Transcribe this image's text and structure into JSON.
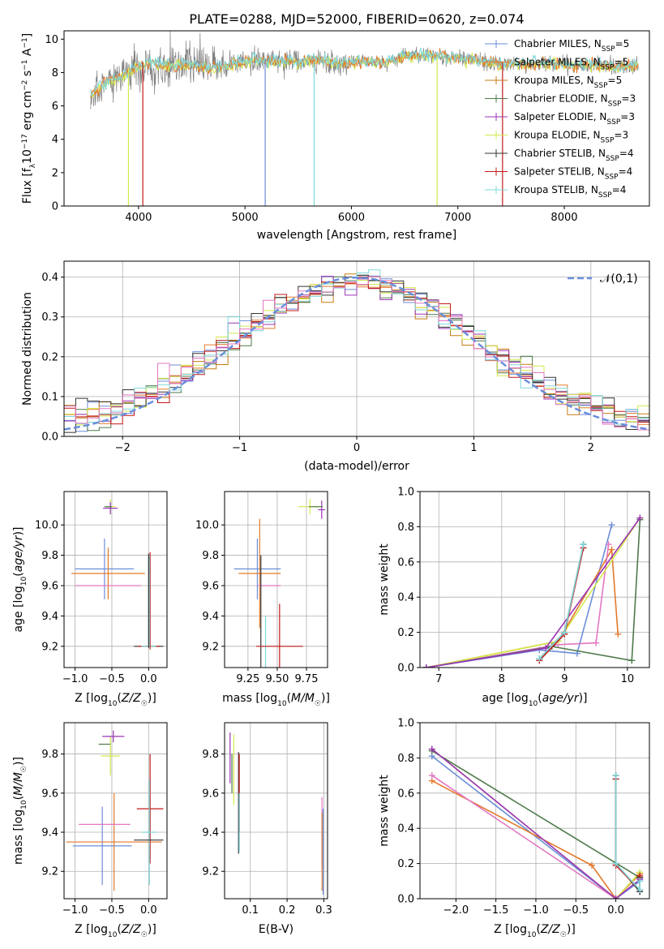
{
  "title": "PLATE=0288, MJD=52000, FIBERID=0620, z=0.074",
  "colors": {
    "chabrier_miles": "#6c8ed8",
    "salpeter_miles": "#e37a2b",
    "kroupa_miles": "#c97a14",
    "chabrier_elodie": "#4e7a4a",
    "salpeter_elodie": "#9b34b6",
    "kroupa_elodie": "#d4e84a",
    "chabrier_stelib": "#333333",
    "salpeter_stelib": "#c21a1a",
    "kroupa_stelib": "#7fd8da",
    "gaussian": "#6a8fdc",
    "pink": "#e377c2"
  },
  "chart_data": [
    {
      "id": "spectrum",
      "type": "line",
      "xlabel": "wavelength [Angstrom, rest frame]",
      "ylabel": "Flux [f_λ 10^-17 erg cm^-2 s^-1 A^-1]",
      "xlim": [
        3300,
        8800
      ],
      "ylim": [
        0,
        10.5
      ],
      "xticks": [
        "4000",
        "5000",
        "6000",
        "7000",
        "8000"
      ],
      "yticks": [
        "0",
        "2",
        "4",
        "6",
        "8",
        "10"
      ],
      "grid": false,
      "legend_position": "upper-right",
      "legend": [
        {
          "label": "Chabrier MILES, N",
          "sub": "SSP",
          "tail": "=5"
        },
        {
          "label": "Salpeter MILES, N",
          "sub": "SSP",
          "tail": "=5"
        },
        {
          "label": "Kroupa MILES, N",
          "sub": "SSP",
          "tail": "=5"
        },
        {
          "label": "Chabrier ELODIE, N",
          "sub": "SSP",
          "tail": "=3"
        },
        {
          "label": "Salpeter ELODIE, N",
          "sub": "SSP",
          "tail": "=3"
        },
        {
          "label": "Kroupa ELODIE, N",
          "sub": "SSP",
          "tail": "=3"
        },
        {
          "label": "Chabrier STELIB, N",
          "sub": "SSP",
          "tail": "=4"
        },
        {
          "label": "Salpeter STELIB, N",
          "sub": "SSP",
          "tail": "=4"
        },
        {
          "label": "Kroupa STELIB, N",
          "sub": "SSP",
          "tail": "=4"
        }
      ],
      "continuum": [
        [
          3550,
          6.6
        ],
        [
          3650,
          7.2
        ],
        [
          3750,
          7.6
        ],
        [
          3850,
          7.8
        ],
        [
          3950,
          8.2
        ],
        [
          4100,
          8.6
        ],
        [
          4300,
          8.4
        ],
        [
          4500,
          8.5
        ],
        [
          4700,
          8.3
        ],
        [
          4900,
          8.5
        ],
        [
          5100,
          8.8
        ],
        [
          5300,
          8.7
        ],
        [
          5500,
          8.6
        ],
        [
          5700,
          8.8
        ],
        [
          5900,
          8.5
        ],
        [
          6100,
          8.7
        ],
        [
          6300,
          8.6
        ],
        [
          6500,
          9.0
        ],
        [
          6700,
          9.1
        ],
        [
          6900,
          8.9
        ],
        [
          7100,
          8.8
        ],
        [
          7300,
          8.6
        ],
        [
          7500,
          8.5
        ],
        [
          7700,
          8.5
        ],
        [
          7900,
          8.6
        ],
        [
          8100,
          8.4
        ],
        [
          8300,
          8.5
        ],
        [
          8500,
          8.3
        ],
        [
          8700,
          8.4
        ]
      ],
      "absorption_lines": [
        {
          "x": 3905,
          "depth": 8.3,
          "color": "kroupa_elodie"
        },
        {
          "x": 4040,
          "depth": 8.6,
          "color": "salpeter_stelib"
        },
        {
          "x": 5190,
          "depth": 8.8,
          "color": "chabrier_miles"
        },
        {
          "x": 5650,
          "depth": 8.7,
          "color": "kroupa_stelib"
        },
        {
          "x": 6805,
          "depth": 8.9,
          "color": "kroupa_elodie"
        },
        {
          "x": 7420,
          "depth": 8.6,
          "color": "salpeter_stelib"
        }
      ]
    },
    {
      "id": "residuals",
      "type": "line",
      "xlabel": "(data-model)/error",
      "ylabel": "Normed distribution",
      "xlim": [
        -2.5,
        2.5
      ],
      "ylim": [
        0,
        0.44
      ],
      "xticks": [
        "-2",
        "-1",
        "0",
        "1",
        "2"
      ],
      "yticks": [
        "0.0",
        "0.1",
        "0.2",
        "0.3",
        "0.4"
      ],
      "grid": true,
      "legend_position": "upper-right",
      "legend_label": "𝒩(0,1)",
      "bin_width": 0.1,
      "bin_start": -2.5,
      "bin_count": 50
    },
    {
      "id": "age_vs_Z",
      "type": "scatter",
      "xlabel": "Z [log10(Z/Z☉)]",
      "ylabel": "age  [log10(age/yr)]",
      "xlim": [
        -1.15,
        0.25
      ],
      "ylim": [
        9.06,
        10.22
      ],
      "xticks": [
        "-1.0",
        "-0.5",
        "0.0"
      ],
      "yticks": [
        "9.2",
        "9.4",
        "9.6",
        "9.8",
        "10.0"
      ],
      "grid": true,
      "errorbars": [
        {
          "c": "chabrier_miles",
          "x": -0.6,
          "y": 9.71,
          "xerr": 0.4,
          "yerr": 0.2
        },
        {
          "c": "salpeter_miles",
          "x": -0.55,
          "y": 9.68,
          "xerr": 0.5,
          "yerr": 0.17
        },
        {
          "c": "pink",
          "x": -0.55,
          "y": 9.6,
          "xerr": 0.45,
          "yerr": 0.0
        },
        {
          "c": "kroupa_elodie",
          "x": -0.52,
          "y": 10.12,
          "xerr": 0.07,
          "yerr": 0.05
        },
        {
          "c": "salpeter_elodie",
          "x": -0.52,
          "y": 10.11,
          "xerr": 0.1,
          "yerr": 0.04
        },
        {
          "c": "chabrier_elodie",
          "x": -0.55,
          "y": 10.12,
          "xerr": 0.05,
          "yerr": 0.0
        },
        {
          "c": "chabrier_stelib",
          "x": 0.0,
          "y": 9.2,
          "xerr": 0.2,
          "yerr": 0.0
        },
        {
          "c": "salpeter_stelib",
          "x": 0.0,
          "y": 9.2,
          "xerr": 0.15,
          "yerr": 0.0
        },
        {
          "c": "kroupa_stelib",
          "x": 0.0,
          "y": 9.2,
          "xerr": 0.1,
          "yerr": 0.0
        },
        {
          "c": "salpeter_stelib",
          "x": 0.02,
          "y": 9.5,
          "xerr": 0.0,
          "yerr": 0.32
        },
        {
          "c": "kroupa_stelib",
          "x": 0.01,
          "y": 9.5,
          "xerr": 0.0,
          "yerr": 0.3
        },
        {
          "c": "chabrier_stelib",
          "x": 0.0,
          "y": 9.5,
          "xerr": 0.0,
          "yerr": 0.31
        }
      ]
    },
    {
      "id": "age_vs_mass",
      "type": "scatter",
      "xlabel": "mass [log10(M/M☉)]",
      "ylabel": "",
      "xlim": [
        9.05,
        9.93
      ],
      "ylim": [
        9.06,
        10.22
      ],
      "xticks": [
        "9.25",
        "9.50",
        "9.75"
      ],
      "yticks": [
        "9.2",
        "9.4",
        "9.6",
        "9.8",
        "10.0"
      ],
      "grid": true,
      "errorbars": [
        {
          "c": "chabrier_miles",
          "x": 9.33,
          "y": 9.71,
          "xerr": 0.2,
          "yerr": 0.2
        },
        {
          "c": "salpeter_miles",
          "x": 9.35,
          "y": 9.68,
          "xerr": 0.18,
          "yerr": 0.36
        },
        {
          "c": "pink",
          "x": 9.43,
          "y": 9.6,
          "xerr": 0.1,
          "yerr": 0.0
        },
        {
          "c": "kroupa_stelib",
          "x": 9.4,
          "y": 9.2,
          "xerr": 0.0,
          "yerr": 0.2
        },
        {
          "c": "chabrier_stelib",
          "x": 9.36,
          "y": 9.36,
          "xerr": 0.0,
          "yerr": 0.44
        },
        {
          "c": "salpeter_stelib",
          "x": 9.52,
          "y": 9.2,
          "xerr": 0.2,
          "yerr": 0.28
        },
        {
          "c": "kroupa_elodie",
          "x": 9.78,
          "y": 10.12,
          "xerr": 0.1,
          "yerr": 0.05
        },
        {
          "c": "salpeter_elodie",
          "x": 9.88,
          "y": 10.1,
          "xerr": 0.03,
          "yerr": 0.06
        },
        {
          "c": "chabrier_elodie",
          "x": 9.83,
          "y": 10.12,
          "xerr": 0.06,
          "yerr": 0.0
        }
      ]
    },
    {
      "id": "massweight_vs_age",
      "type": "line",
      "xlabel": "age  [log10(age/yr)]",
      "ylabel": "mass weight",
      "xlim": [
        6.7,
        10.35
      ],
      "ylim": [
        0,
        1
      ],
      "xticks": [
        "7",
        "8",
        "9",
        "10"
      ],
      "yticks": [
        "0.0",
        "0.2",
        "0.4",
        "0.6",
        "0.8",
        "1.0"
      ],
      "grid": true,
      "series": [
        {
          "c": "chabrier_miles",
          "x": [
            6.8,
            8.6,
            9.2,
            9.75
          ],
          "y": [
            0.0,
            0.1,
            0.08,
            0.81
          ]
        },
        {
          "c": "salpeter_miles",
          "x": [
            6.8,
            8.9,
            9.75,
            9.85
          ],
          "y": [
            0.0,
            0.15,
            0.67,
            0.19
          ]
        },
        {
          "c": "pink",
          "x": [
            6.8,
            8.9,
            9.5,
            9.7
          ],
          "y": [
            0.0,
            0.13,
            0.14,
            0.7
          ]
        },
        {
          "c": "kroupa_elodie",
          "x": [
            6.8,
            8.9,
            10.2
          ],
          "y": [
            0.0,
            0.15,
            0.85
          ]
        },
        {
          "c": "chabrier_elodie",
          "x": [
            6.8,
            8.8,
            10.07,
            10.2
          ],
          "y": [
            0.0,
            0.12,
            0.04,
            0.84
          ]
        },
        {
          "c": "salpeter_elodie",
          "x": [
            6.8,
            8.7,
            10.2
          ],
          "y": [
            0.0,
            0.11,
            0.85
          ]
        },
        {
          "c": "chabrier_stelib",
          "x": [
            8.6,
            9.0,
            9.3
          ],
          "y": [
            0.05,
            0.2,
            0.7
          ]
        },
        {
          "c": "salpeter_stelib",
          "x": [
            8.6,
            9.0,
            9.3
          ],
          "y": [
            0.04,
            0.19,
            0.68
          ]
        },
        {
          "c": "kroupa_stelib",
          "x": [
            8.6,
            9.0,
            9.3
          ],
          "y": [
            0.05,
            0.2,
            0.7
          ]
        }
      ]
    },
    {
      "id": "mass_vs_Z",
      "type": "scatter",
      "xlabel": "Z [log10(Z/Z☉)]",
      "ylabel": "mass [log10(M/M☉)]",
      "xlim": [
        -1.15,
        0.25
      ],
      "ylim": [
        9.06,
        9.96
      ],
      "xticks": [
        "-1.0",
        "-0.5",
        "0.0"
      ],
      "yticks": [
        "9.2",
        "9.4",
        "9.6",
        "9.8"
      ],
      "grid": true,
      "errorbars": [
        {
          "c": "chabrier_miles",
          "x": -0.63,
          "y": 9.33,
          "xerr": 0.4,
          "yerr": 0.2
        },
        {
          "c": "salpeter_miles",
          "x": -0.47,
          "y": 9.35,
          "xerr": 0.65,
          "yerr": 0.25
        },
        {
          "c": "pink",
          "x": -0.6,
          "y": 9.44,
          "xerr": 0.35,
          "yerr": 0.0
        },
        {
          "c": "kroupa_elodie",
          "x": -0.52,
          "y": 9.79,
          "xerr": 0.13,
          "yerr": 0.1
        },
        {
          "c": "salpeter_elodie",
          "x": -0.48,
          "y": 9.89,
          "xerr": 0.15,
          "yerr": 0.03
        },
        {
          "c": "chabrier_elodie",
          "x": -0.6,
          "y": 9.85,
          "xerr": 0.08,
          "yerr": 0.0
        },
        {
          "c": "salpeter_stelib",
          "x": 0.02,
          "y": 9.52,
          "xerr": 0.18,
          "yerr": 0.28
        },
        {
          "c": "kroupa_stelib",
          "x": 0.01,
          "y": 9.4,
          "xerr": 0.1,
          "yerr": 0.27
        },
        {
          "c": "chabrier_stelib",
          "x": 0.0,
          "y": 9.36,
          "xerr": 0.2,
          "yerr": 0.0
        }
      ]
    },
    {
      "id": "mass_vs_ebv",
      "type": "scatter",
      "xlabel": "E(B-V)",
      "ylabel": "",
      "xlim": [
        0.03,
        0.31
      ],
      "ylim": [
        9.06,
        9.96
      ],
      "xticks": [
        "0.1",
        "0.2",
        "0.3"
      ],
      "yticks": [
        "9.2",
        "9.4",
        "9.6",
        "9.8"
      ],
      "grid": true,
      "errorbars": [
        {
          "c": "salpeter_elodie",
          "x": 0.045,
          "y": 9.78,
          "xerr": 0.0,
          "yerr": 0.13
        },
        {
          "c": "kroupa_elodie",
          "x": 0.055,
          "y": 9.72,
          "xerr": 0.0,
          "yerr": 0.18
        },
        {
          "c": "chabrier_elodie",
          "x": 0.05,
          "y": 9.7,
          "xerr": 0.0,
          "yerr": 0.1
        },
        {
          "c": "chabrier_stelib",
          "x": 0.068,
          "y": 9.55,
          "xerr": 0.0,
          "yerr": 0.26
        },
        {
          "c": "salpeter_stelib",
          "x": 0.07,
          "y": 9.6,
          "xerr": 0.0,
          "yerr": 0.2
        },
        {
          "c": "kroupa_stelib",
          "x": 0.07,
          "y": 9.45,
          "xerr": 0.0,
          "yerr": 0.15
        },
        {
          "c": "pink",
          "x": 0.295,
          "y": 9.4,
          "xerr": 0.0,
          "yerr": 0.18
        },
        {
          "c": "salpeter_miles",
          "x": 0.295,
          "y": 9.3,
          "xerr": 0.0,
          "yerr": 0.2
        },
        {
          "c": "chabrier_miles",
          "x": 0.298,
          "y": 9.3,
          "xerr": 0.0,
          "yerr": 0.22
        }
      ]
    },
    {
      "id": "massweight_vs_Z",
      "type": "line",
      "xlabel": "Z [log10(Z/Z☉)]",
      "ylabel": "mass weight",
      "xlim": [
        -2.45,
        0.42
      ],
      "ylim": [
        0,
        1
      ],
      "xticks": [
        "-2.0",
        "-1.5",
        "-1.0",
        "-0.5",
        "0.0"
      ],
      "yticks": [
        "0.0",
        "0.2",
        "0.4",
        "0.6",
        "0.8",
        "1.0"
      ],
      "grid": true,
      "series": [
        {
          "c": "chabrier_miles",
          "x": [
            -2.3,
            0.0,
            0.3
          ],
          "y": [
            0.81,
            0.0,
            0.1
          ]
        },
        {
          "c": "salpeter_miles",
          "x": [
            -2.3,
            -0.3,
            0.0,
            0.3
          ],
          "y": [
            0.67,
            0.19,
            0.0,
            0.14
          ]
        },
        {
          "c": "pink",
          "x": [
            -2.3,
            0.0,
            0.3
          ],
          "y": [
            0.7,
            0.0,
            0.15
          ]
        },
        {
          "c": "kroupa_elodie",
          "x": [
            -2.3,
            0.0,
            0.3
          ],
          "y": [
            0.85,
            0.0,
            0.15
          ]
        },
        {
          "c": "chabrier_elodie",
          "x": [
            -2.3,
            0.3
          ],
          "y": [
            0.84,
            0.12
          ]
        },
        {
          "c": "salpeter_elodie",
          "x": [
            -2.3,
            0.0,
            0.3
          ],
          "y": [
            0.85,
            0.0,
            0.11
          ]
        },
        {
          "c": "chabrier_stelib",
          "x": [
            0.0,
            0.0,
            0.3,
            0.3
          ],
          "y": [
            0.7,
            0.2,
            0.04,
            0.12
          ]
        },
        {
          "c": "salpeter_stelib",
          "x": [
            0.0,
            0.0,
            0.3,
            0.3
          ],
          "y": [
            0.68,
            0.19,
            0.05,
            0.13
          ]
        },
        {
          "c": "kroupa_stelib",
          "x": [
            0.0,
            0.0,
            0.3,
            0.3
          ],
          "y": [
            0.7,
            0.2,
            0.05,
            0.1
          ]
        }
      ]
    }
  ]
}
